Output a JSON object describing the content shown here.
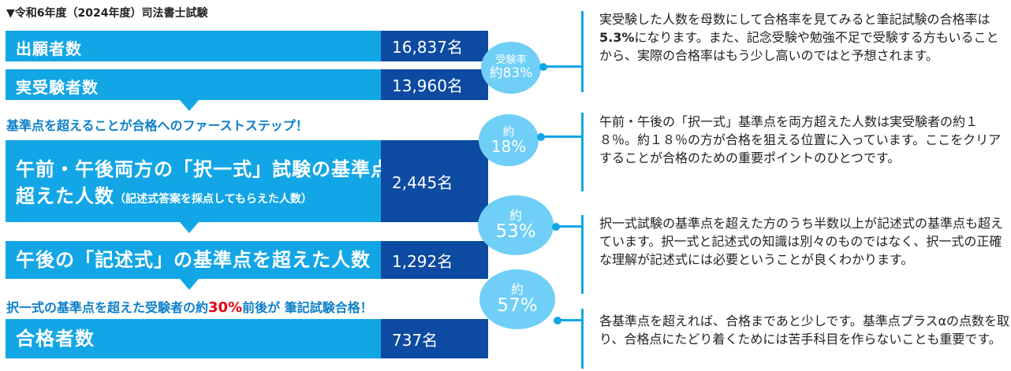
{
  "heading": "▼令和6年度（2024年度）司法書士試験",
  "rows": {
    "applicants": {
      "label": "出願者数",
      "value": "16,837名"
    },
    "examinees": {
      "label": "実受験者数",
      "value": "13,960名"
    },
    "passed_both": {
      "label_line1": "午前・午後両方の「択一式」試験の基準点を",
      "label_line2": "超えた人数",
      "label_note": "（記述式答案を採点してもらえた人数）",
      "value": "2,445名"
    },
    "essay": {
      "label": "午後の「記述式」の基準点を超えた人数",
      "value": "1,292名"
    },
    "successful": {
      "label": "合格者数",
      "value": "737名"
    }
  },
  "step1": "基準点を超えることが合格へのファーストステップ！",
  "step2": {
    "before": "択一式の基準点を超えた受験者の約",
    "highlight": "30%",
    "after": "前後が 筆記試験合格！"
  },
  "bubbles": [
    {
      "line1": "受験率",
      "line2": "約83%"
    },
    {
      "line1": "約",
      "line2": "18%"
    },
    {
      "line1": "約",
      "line2": "53%"
    },
    {
      "line1": "約",
      "line2": "57%"
    }
  ],
  "notes": {
    "n1": {
      "before": "実受験した人数を母数にして合格率を見てみると筆記試験の合格率は",
      "bold": "5.3%",
      "after": "になります。また、記念受験や勉強不足で受験する方もいることから、実際の合格率はもう少し高いのではと予想されます。"
    },
    "n2": "午前・午後の「択一式」基準点を両方超えた人数は実受験者の約１８％。約１８％の方が合格を狙える位置に入っています。ここをクリアすることが合格のための重要ポイントのひとつです。",
    "n3": "択一式試験の基準点を超えた方のうち半数以上が記述式の基準点も超えています。択一式と記述式の知識は別々のものではなく、択一式の正確な理解が記述式には必要ということが良くわかります。",
    "n4": "各基準点を超えれば、合格まであと少しです。基準点プラスαの点数を取り、合格点にたどり着くためには苦手科目を作らないことも重要です。"
  },
  "colors": {
    "bar": "#12a6e6",
    "value_box": "#0d4aa1",
    "bubble": "#6fcff7",
    "step_text": "#0c7fc9",
    "highlight": "#e60012"
  }
}
